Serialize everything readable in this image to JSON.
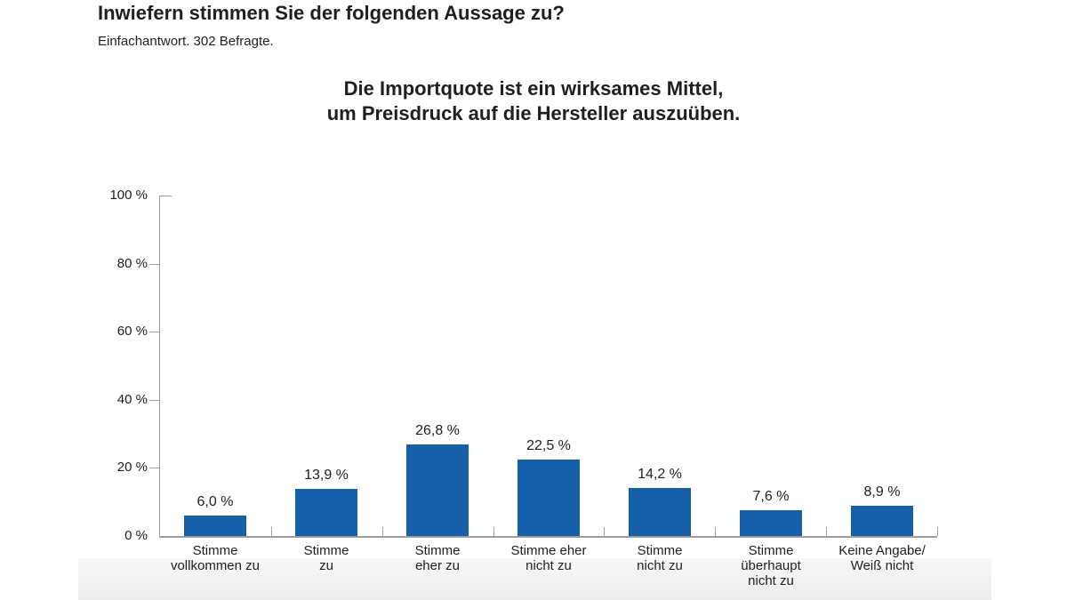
{
  "page": {
    "title": "Inwiefern stimmen Sie der folgenden Aussage zu?",
    "subtitle": "Einfachantwort. 302 Befragte."
  },
  "chart_data": {
    "type": "bar",
    "title": "Die Importquote ist ein wirksames Mittel, um Preisdruck auf die Hersteller auszuüben.",
    "title_lines": [
      "Die Importquote ist ein wirksames Mittel,",
      "um Preisdruck auf die Hersteller auszuüben."
    ],
    "categories": [
      "Stimme vollkommen zu",
      "Stimme zu",
      "Stimme eher zu",
      "Stimme eher nicht zu",
      "Stimme nicht zu",
      "Stimme überhaupt nicht zu",
      "Keine Angabe/Weiß nicht"
    ],
    "category_label_lines": [
      [
        "Stimme",
        "vollkommen zu"
      ],
      [
        "Stimme",
        "zu"
      ],
      [
        "Stimme",
        "eher zu"
      ],
      [
        "Stimme eher",
        "nicht zu"
      ],
      [
        "Stimme",
        "nicht zu"
      ],
      [
        "Stimme",
        "überhaupt",
        "nicht zu"
      ],
      [
        "Keine Angabe/",
        "Weiß nicht"
      ]
    ],
    "values": [
      6.0,
      13.9,
      26.8,
      22.5,
      14.2,
      7.6,
      8.9
    ],
    "value_labels": [
      "6,0 %",
      "13,9 %",
      "26,8 %",
      "22,5 %",
      "14,2 %",
      "7,6 %",
      "8,9 %"
    ],
    "xlabel": "",
    "ylabel": "",
    "ylim": [
      0,
      100
    ],
    "ytick_values": [
      0,
      20,
      40,
      60,
      80,
      100
    ],
    "ytick_labels": [
      "0 %",
      "20 %",
      "40 %",
      "60 %",
      "80 %",
      "100 %"
    ],
    "grid": false,
    "legend": null,
    "bar_color": "#1560a8",
    "axis_color": "#9d9d9d",
    "text_color": "#1f1f1f"
  }
}
